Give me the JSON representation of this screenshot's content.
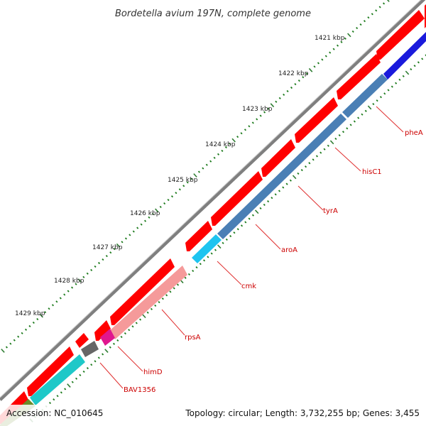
{
  "title": "Bordetella avium 197N, complete genome",
  "accession": "Accession: NC_010645",
  "topology": "Topology: circular; Length: 3,732,255 bp; Genes: 3,455",
  "colors": {
    "backbone": "#808080",
    "forward_cds": "#ff0000",
    "label": "#cc0000",
    "connector": "#e03030",
    "tick_major": "#2e7d32",
    "tick_minor": "#1b7a1b"
  },
  "kbp_labels": [
    "1421 kbp",
    "1422 kbp",
    "1423 kbp",
    "1424 kbp",
    "1425 kbp",
    "1426 kbp",
    "1427 kbp",
    "1428 kbp",
    "1429 kbp"
  ],
  "gene_labels": [
    "pheA",
    "hisC1",
    "tyrA",
    "aroA",
    "cmk",
    "rpsA",
    "himD",
    "BAV1356"
  ]
}
